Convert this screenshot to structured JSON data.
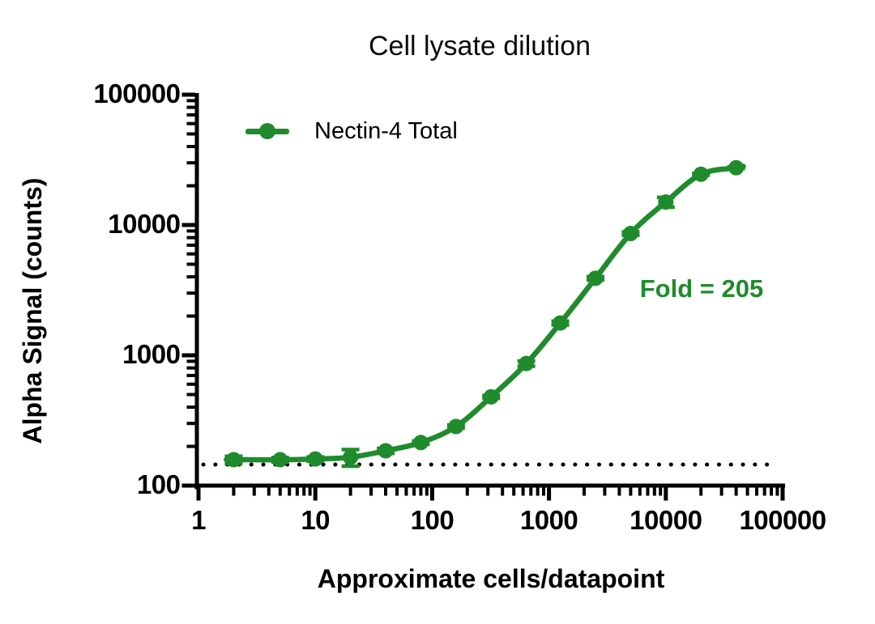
{
  "title": "Cell lysate dilution",
  "legend": {
    "label": "Nectin-4 Total"
  },
  "annotation": {
    "text": "Fold = 205"
  },
  "colors": {
    "series": "#1f8b2c",
    "annotation": "#1f8b2c",
    "axis": "#000000",
    "baseline": "#000000",
    "background": "#ffffff",
    "text": "#0a0a0a"
  },
  "chart_data": {
    "type": "line",
    "title": "Cell lysate dilution",
    "xlabel": "Approximate cells/datapoint",
    "ylabel": "Alpha Signal (counts)",
    "x_scale": "log10",
    "y_scale": "log10",
    "xlim": [
      1,
      100000
    ],
    "ylim": [
      100,
      100000
    ],
    "x_ticks": [
      1,
      10,
      100,
      1000,
      10000,
      100000
    ],
    "y_ticks": [
      100,
      1000,
      10000,
      100000
    ],
    "grid": false,
    "legend_position": "top-left-inside",
    "series": [
      {
        "name": "Nectin-4 Total",
        "color": "#1f8b2c",
        "marker": "circle",
        "x": [
          2,
          5,
          10,
          20,
          40,
          80,
          160,
          320,
          640,
          1250,
          2500,
          5000,
          10000,
          20000,
          40000
        ],
        "y": [
          158,
          158,
          160,
          165,
          185,
          214,
          284,
          480,
          865,
          1770,
          3900,
          8600,
          15000,
          24500,
          27500
        ],
        "yerr": [
          10,
          6,
          6,
          24,
          8,
          6,
          8,
          12,
          40,
          60,
          120,
          250,
          1300,
          400,
          400
        ]
      }
    ],
    "baseline": {
      "y": 145,
      "style": "dotted"
    },
    "annotation": "Fold = 205"
  }
}
